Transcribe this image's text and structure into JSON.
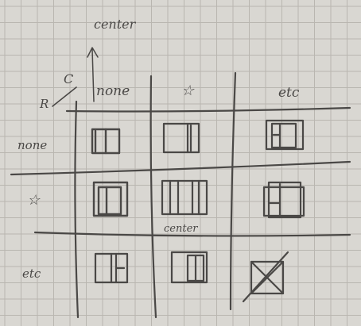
{
  "sketch": {
    "title": "center",
    "axis": {
      "row_letter": "R",
      "col_letter": "C"
    },
    "column_headers": [
      "none",
      "☆",
      "etc"
    ],
    "row_headers": [
      "none",
      "☆",
      "etc"
    ],
    "cell_annotation": "center",
    "colors": {
      "paper": "#d9d7d2",
      "grid": "#b9b6b0",
      "pencil": "#4a4846"
    }
  }
}
